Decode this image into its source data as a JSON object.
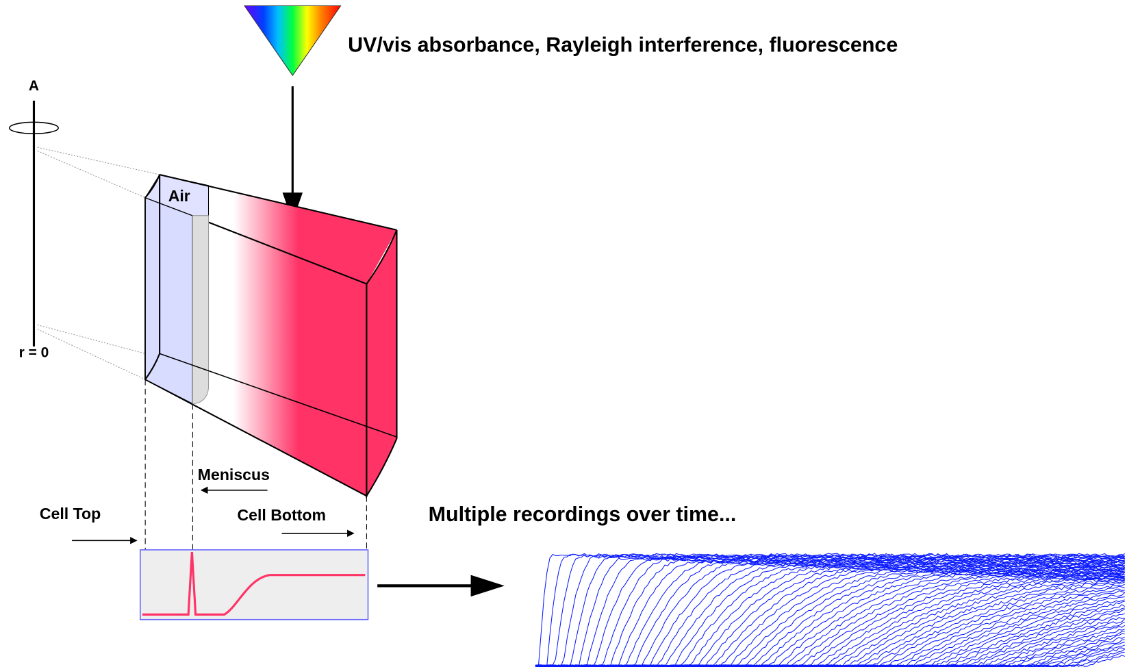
{
  "title": "UV/vis absorbance, Rayleigh interference, fluorescence",
  "axis_label": "A",
  "origin_label": "r = 0",
  "air_label": "Air",
  "meniscus_label": "Meniscus",
  "cell_top_label": "Cell Top",
  "cell_bottom_label": "Cell Bottom",
  "recordings_label": "Multiple recordings over time..."
}
